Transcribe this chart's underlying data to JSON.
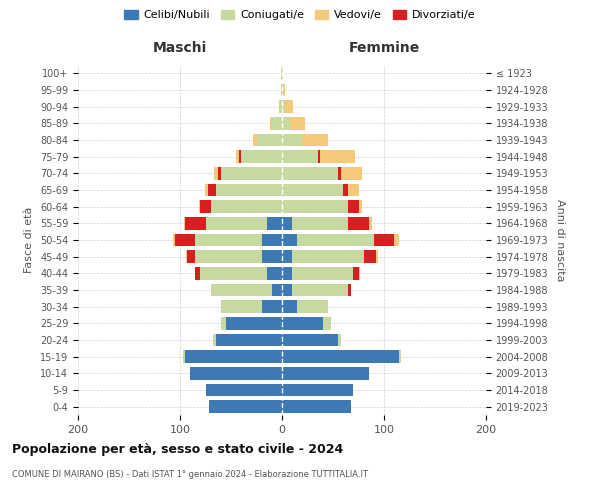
{
  "age_groups": [
    "0-4",
    "5-9",
    "10-14",
    "15-19",
    "20-24",
    "25-29",
    "30-34",
    "35-39",
    "40-44",
    "45-49",
    "50-54",
    "55-59",
    "60-64",
    "65-69",
    "70-74",
    "75-79",
    "80-84",
    "85-89",
    "90-94",
    "95-99",
    "100+"
  ],
  "birth_years": [
    "2019-2023",
    "2014-2018",
    "2009-2013",
    "2004-2008",
    "1999-2003",
    "1994-1998",
    "1989-1993",
    "1984-1988",
    "1979-1983",
    "1974-1978",
    "1969-1973",
    "1964-1968",
    "1959-1963",
    "1954-1958",
    "1949-1953",
    "1944-1948",
    "1939-1943",
    "1934-1938",
    "1929-1933",
    "1924-1928",
    "≤ 1923"
  ],
  "males": {
    "celibi": [
      72,
      75,
      90,
      95,
      65,
      55,
      20,
      10,
      15,
      20,
      20,
      15,
      0,
      0,
      0,
      0,
      0,
      0,
      0,
      0,
      0
    ],
    "coniugati": [
      0,
      0,
      0,
      2,
      3,
      5,
      40,
      60,
      65,
      65,
      65,
      60,
      70,
      65,
      60,
      40,
      25,
      10,
      2,
      1,
      1
    ],
    "vedovi": [
      0,
      0,
      0,
      0,
      0,
      0,
      0,
      0,
      0,
      1,
      2,
      1,
      1,
      2,
      4,
      3,
      3,
      2,
      1,
      0,
      0
    ],
    "divorziati": [
      0,
      0,
      0,
      0,
      0,
      0,
      0,
      0,
      5,
      8,
      20,
      20,
      10,
      8,
      3,
      2,
      0,
      0,
      0,
      0,
      0
    ]
  },
  "females": {
    "nubili": [
      68,
      70,
      85,
      115,
      55,
      40,
      15,
      10,
      10,
      10,
      15,
      10,
      0,
      0,
      0,
      0,
      0,
      0,
      0,
      0,
      0
    ],
    "coniugate": [
      0,
      0,
      0,
      2,
      3,
      8,
      30,
      55,
      60,
      70,
      75,
      55,
      65,
      60,
      55,
      35,
      20,
      8,
      3,
      1,
      1
    ],
    "vedove": [
      0,
      0,
      0,
      0,
      0,
      0,
      0,
      0,
      1,
      2,
      5,
      3,
      3,
      10,
      20,
      35,
      25,
      15,
      8,
      2,
      0
    ],
    "divorziate": [
      0,
      0,
      0,
      0,
      0,
      0,
      0,
      3,
      5,
      12,
      20,
      20,
      10,
      5,
      3,
      2,
      0,
      0,
      0,
      0,
      0
    ]
  },
  "colors": {
    "celibi": "#3d7ab5",
    "coniugati": "#c5d9a0",
    "vedovi": "#f5c97a",
    "divorziati": "#d42020"
  },
  "legend_labels": [
    "Celibi/Nubili",
    "Coniugati/e",
    "Vedovi/e",
    "Divorziati/e"
  ],
  "title": "Popolazione per età, sesso e stato civile - 2024",
  "subtitle": "COMUNE DI MAIRANO (BS) - Dati ISTAT 1° gennaio 2024 - Elaborazione TUTTITALIA.IT",
  "label_maschi": "Maschi",
  "label_femmine": "Femmine",
  "ylabel_left": "Fasce di età",
  "ylabel_right": "Anni di nascita",
  "xlim": 200,
  "background_color": "#ffffff",
  "grid_color": "#cccccc"
}
